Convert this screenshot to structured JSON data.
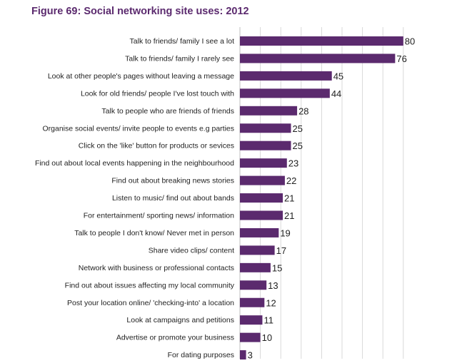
{
  "figure_title": "Figure 69: Social networking site uses: 2012",
  "colors": {
    "bar": "#5b2a6e",
    "grid": "#d9d9d9",
    "title": "#5b2a6e"
  },
  "chart_data": {
    "type": "bar",
    "orientation": "horizontal",
    "title": "Figure 69: Social networking site uses: 2012",
    "xlabel": "",
    "ylabel": "",
    "xlim": [
      0,
      80
    ],
    "grid": true,
    "categories": [
      "Talk to friends/ family I see a lot",
      "Talk to friends/ family I rarely see",
      "Look at other people's pages without leaving a message",
      "Look for old friends/ people I've lost touch with",
      "Talk to people who are friends of friends",
      "Organise social events/ invite people to events e.g parties",
      "Click on the 'like' button for products or sevices",
      "Find out about local events happening in the neighbourhood",
      "Find out about breaking news stories",
      "Listen to music/ find out about bands",
      "For entertainment/ sporting news/ information",
      "Talk to people I don't know/ Never met in person",
      "Share video clips/ content",
      "Network with business or professional contacts",
      "Find out about issues affecting my local community",
      "Post your location online/ 'checking-into' a location",
      "Look at campaigns and petitions",
      "Advertise or promote your business",
      "For dating purposes"
    ],
    "values": [
      80,
      76,
      45,
      44,
      28,
      25,
      25,
      23,
      22,
      21,
      21,
      19,
      17,
      15,
      13,
      12,
      11,
      10,
      3
    ]
  }
}
